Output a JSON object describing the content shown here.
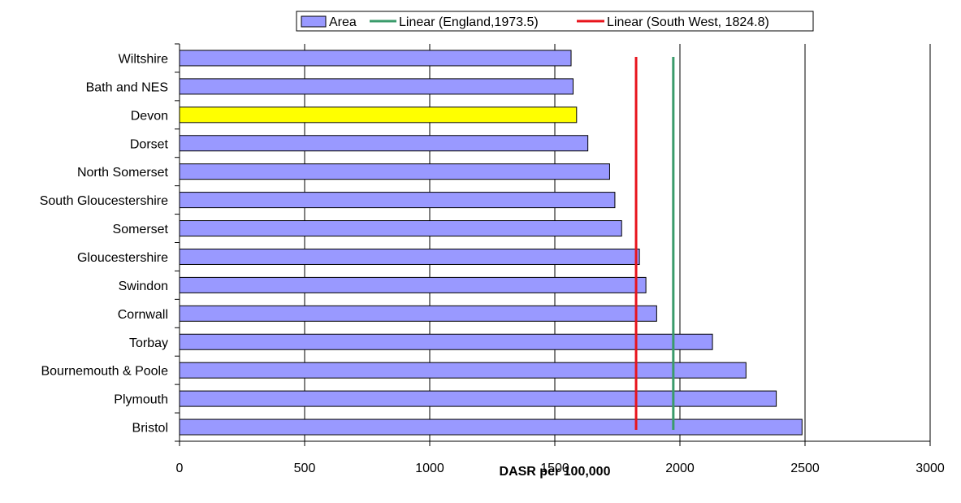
{
  "chart_data": {
    "type": "bar",
    "orientation": "horizontal",
    "categories": [
      "Wiltshire",
      "Bath and NES",
      "Devon",
      "Dorset",
      "North Somerset",
      "South Gloucestershire",
      "Somerset",
      "Gloucestershire",
      "Swindon",
      "Cornwall",
      "Torbay",
      "Bournemouth & Poole",
      "Plymouth",
      "Bristol"
    ],
    "series": [
      {
        "name": "Area",
        "values": [
          1565,
          1573,
          1587,
          1632,
          1719,
          1740,
          1767,
          1838,
          1864,
          1907,
          2130,
          2264,
          2385,
          2488
        ],
        "color": "#9999ff",
        "highlight_category": "Devon",
        "highlight_color": "#ffff00"
      }
    ],
    "reference_lines": [
      {
        "name": "Linear (England,1973.5)",
        "value": 1973.5,
        "color": "#3a9b6b"
      },
      {
        "name": "Linear (South West, 1824.8)",
        "value": 1824.8,
        "color": "#e8141c"
      }
    ],
    "xlabel": "DASR per 100,000",
    "xlim": [
      0,
      3000
    ],
    "xticks": [
      "0",
      "500",
      "1000",
      "1500",
      "2000",
      "2500",
      "3000"
    ],
    "xtick_values": [
      0,
      500,
      1000,
      1500,
      2000,
      2500,
      3000
    ],
    "grid": "vertical",
    "legend_position": "top"
  }
}
